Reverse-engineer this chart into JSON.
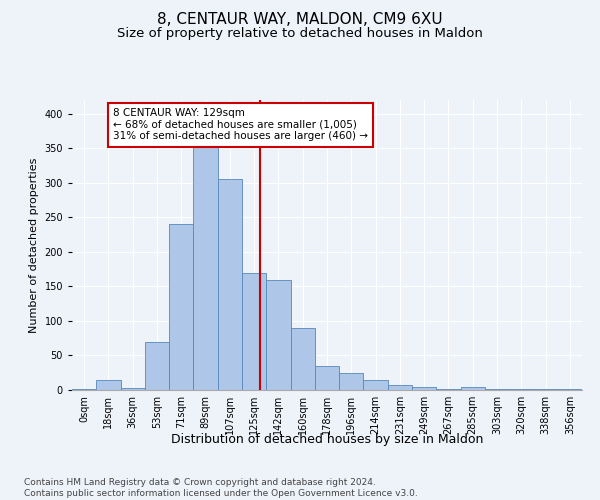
{
  "title": "8, CENTAUR WAY, MALDON, CM9 6XU",
  "subtitle": "Size of property relative to detached houses in Maldon",
  "xlabel": "Distribution of detached houses by size in Maldon",
  "ylabel": "Number of detached properties",
  "bar_labels": [
    "0sqm",
    "18sqm",
    "36sqm",
    "53sqm",
    "71sqm",
    "89sqm",
    "107sqm",
    "125sqm",
    "142sqm",
    "160sqm",
    "178sqm",
    "196sqm",
    "214sqm",
    "231sqm",
    "249sqm",
    "267sqm",
    "285sqm",
    "303sqm",
    "320sqm",
    "338sqm",
    "356sqm"
  ],
  "bar_values": [
    2,
    15,
    3,
    70,
    240,
    375,
    305,
    170,
    160,
    90,
    35,
    25,
    15,
    7,
    5,
    2,
    5,
    1,
    1,
    1,
    2
  ],
  "bar_color": "#aec6e8",
  "bar_edge_color": "#5588bb",
  "background_color": "#eef2f9",
  "grid_color": "#ffffff",
  "vline_x": 7.25,
  "vline_color": "#cc0000",
  "annotation_text": "8 CENTAUR WAY: 129sqm\n← 68% of detached houses are smaller (1,005)\n31% of semi-detached houses are larger (460) →",
  "annotation_box_color": "#ffffff",
  "annotation_box_edge": "#cc0000",
  "ylim": [
    0,
    420
  ],
  "yticks": [
    0,
    50,
    100,
    150,
    200,
    250,
    300,
    350,
    400
  ],
  "footnote": "Contains HM Land Registry data © Crown copyright and database right 2024.\nContains public sector information licensed under the Open Government Licence v3.0.",
  "title_fontsize": 11,
  "subtitle_fontsize": 9.5,
  "xlabel_fontsize": 9,
  "ylabel_fontsize": 8,
  "tick_fontsize": 7,
  "footnote_fontsize": 6.5,
  "annot_fontsize": 7.5
}
